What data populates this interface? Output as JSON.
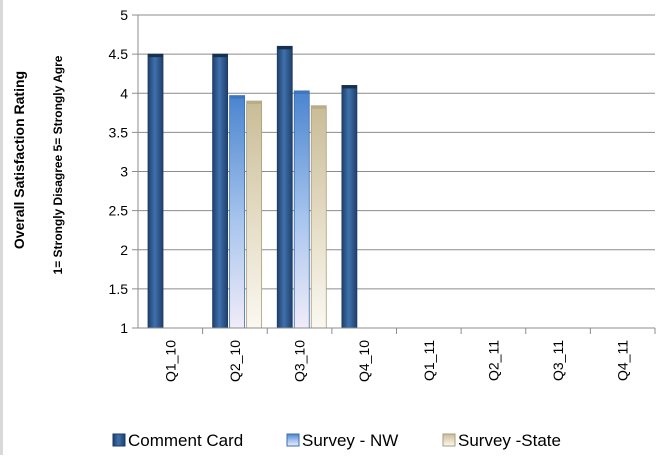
{
  "chart_data": {
    "type": "bar",
    "ylabel": "Overall Satisfaction Rating",
    "ylabel2": "1= Strongly Disagree 5= Strongly Agre",
    "categories": [
      "Q1_10",
      "Q2_10",
      "Q3_10",
      "Q4_10",
      "Q1_11",
      "Q2_11",
      "Q3_11",
      "Q4_11"
    ],
    "series": [
      {
        "name": "Comment Card",
        "values": [
          4.5,
          4.5,
          4.6,
          4.1,
          null,
          null,
          null,
          null
        ]
      },
      {
        "name": "Survey - NW",
        "values": [
          null,
          3.97,
          4.03,
          null,
          null,
          null,
          null,
          null
        ]
      },
      {
        "name": "Survey -State",
        "values": [
          null,
          3.9,
          3.84,
          null,
          null,
          null,
          null,
          null
        ]
      }
    ],
    "ylim": [
      1,
      5
    ],
    "yticks": [
      "1",
      "1.5",
      "2",
      "2.5",
      "3",
      "3.5",
      "4",
      "4.5",
      "5"
    ],
    "grid": true,
    "legend_position": "bottom"
  },
  "colors": {
    "comment_card": "#2e5a8e",
    "survey_nw": "#5f95d8",
    "survey_state": "#d9ceb0",
    "grid": "#8c8c8c"
  }
}
